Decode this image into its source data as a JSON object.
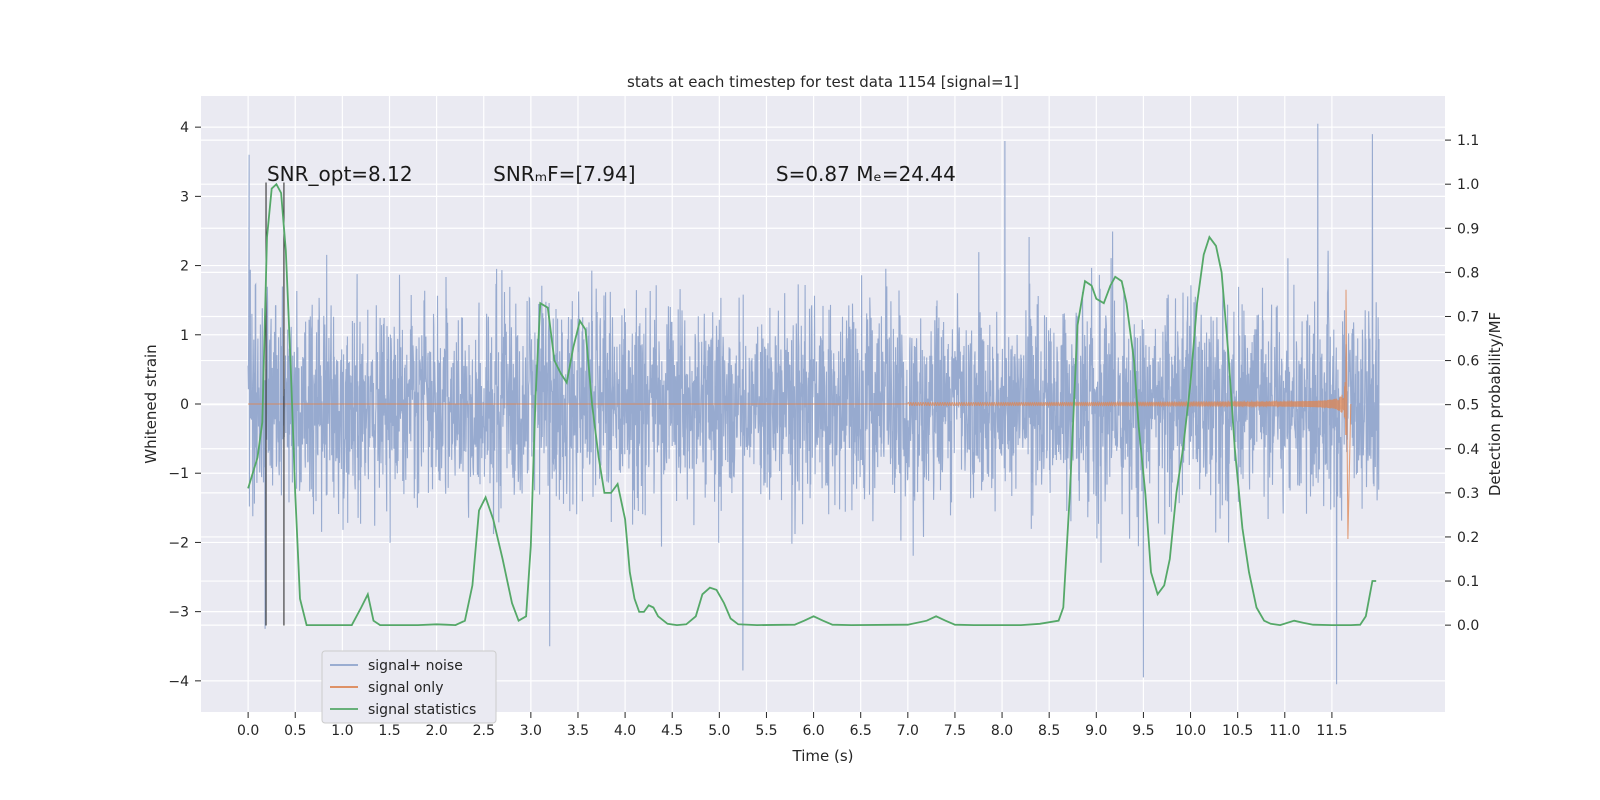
{
  "chart_data": {
    "type": "line",
    "title": "stats at each timestep for test data 1154 [signal=1]",
    "xlabel": "Time (s)",
    "ylabel": "Whitened strain",
    "y2label": "Detection probability/MF",
    "xlim": [
      -0.5,
      12.7
    ],
    "ylim": [
      -4.45,
      4.45
    ],
    "y2lim": [
      -0.197,
      1.2
    ],
    "xticks": [
      0.0,
      0.5,
      1.0,
      1.5,
      2.0,
      2.5,
      3.0,
      3.5,
      4.0,
      4.5,
      5.0,
      5.5,
      6.0,
      6.5,
      7.0,
      7.5,
      8.0,
      8.5,
      9.0,
      9.5,
      10.0,
      10.5,
      11.0,
      11.5
    ],
    "xtick_labels": [
      "0.0",
      "0.5",
      "1.0",
      "1.5",
      "2.0",
      "2.5",
      "3.0",
      "3.5",
      "4.0",
      "4.5",
      "5.0",
      "5.5",
      "6.0",
      "6.5",
      "7.0",
      "7.5",
      "8.0",
      "8.5",
      "9.0",
      "9.5",
      "10.0",
      "10.5",
      "11.0",
      "11.5"
    ],
    "yticks": [
      4,
      3,
      2,
      1,
      0,
      -1,
      -2,
      -3,
      -4
    ],
    "ytick_labels": [
      "4",
      "3",
      "2",
      "1",
      "0",
      "−1",
      "−2",
      "−3",
      "−4"
    ],
    "y2ticks": [
      1.1,
      1.0,
      0.9,
      0.8,
      0.7,
      0.6,
      0.5,
      0.4,
      0.3,
      0.2,
      0.1,
      0.0
    ],
    "y2tick_labels": [
      "1.1",
      "1.0",
      "0.9",
      "0.8",
      "0.7",
      "0.6",
      "0.5",
      "0.4",
      "0.3",
      "0.2",
      "0.1",
      "0.0"
    ],
    "grid": true,
    "legend_position": "lower-left",
    "annotations": [
      {
        "text": "SNR_opt=8.12",
        "x": 0.2,
        "y": 3.22
      },
      {
        "text": "SNRₘF=[7.94]",
        "x": 2.6,
        "y": 3.22
      },
      {
        "text": "S=0.87   Mₑ=24.44",
        "x": 5.6,
        "y": 3.22
      }
    ],
    "vertical_markers": [
      0.19,
      0.38
    ],
    "series": [
      {
        "name": "signal+ noise",
        "color": "#8fa4cc",
        "axis": "left",
        "t_range": [
          0.0,
          12.0
        ],
        "typical_abs": 1.3,
        "extreme_peaks": [
          [
            0.01,
            3.6
          ],
          [
            0.18,
            -3.25
          ],
          [
            8.03,
            3.8
          ],
          [
            11.35,
            4.05
          ],
          [
            11.55,
            -4.05
          ],
          [
            11.93,
            3.9
          ],
          [
            5.25,
            -3.85
          ],
          [
            9.5,
            -3.95
          ],
          [
            3.2,
            -3.5
          ]
        ]
      },
      {
        "name": "signal only",
        "color": "#dd8452",
        "axis": "left",
        "t_range": [
          7.0,
          11.7
        ],
        "chirp_peak_time": 11.65,
        "chirp_peak_amp": 1.65,
        "chirp_peak_min": -1.95
      },
      {
        "name": "signal statistics",
        "color": "#55a868",
        "axis": "right",
        "points": [
          [
            0.0,
            0.31
          ],
          [
            0.1,
            0.38
          ],
          [
            0.15,
            0.46
          ],
          [
            0.2,
            0.88
          ],
          [
            0.25,
            0.99
          ],
          [
            0.3,
            1.0
          ],
          [
            0.35,
            0.98
          ],
          [
            0.4,
            0.85
          ],
          [
            0.45,
            0.6
          ],
          [
            0.5,
            0.3
          ],
          [
            0.55,
            0.06
          ],
          [
            0.62,
            0.0
          ],
          [
            0.8,
            0.0
          ],
          [
            1.0,
            0.0
          ],
          [
            1.1,
            0.0
          ],
          [
            1.2,
            0.04
          ],
          [
            1.27,
            0.07
          ],
          [
            1.33,
            0.01
          ],
          [
            1.4,
            0.0
          ],
          [
            1.6,
            0.0
          ],
          [
            1.8,
            0.0
          ],
          [
            2.0,
            0.002
          ],
          [
            2.1,
            0.001
          ],
          [
            2.2,
            0.0
          ],
          [
            2.3,
            0.01
          ],
          [
            2.38,
            0.09
          ],
          [
            2.45,
            0.26
          ],
          [
            2.52,
            0.29
          ],
          [
            2.6,
            0.24
          ],
          [
            2.7,
            0.15
          ],
          [
            2.8,
            0.05
          ],
          [
            2.87,
            0.01
          ],
          [
            2.95,
            0.02
          ],
          [
            3.0,
            0.18
          ],
          [
            3.05,
            0.52
          ],
          [
            3.1,
            0.73
          ],
          [
            3.18,
            0.72
          ],
          [
            3.25,
            0.6
          ],
          [
            3.32,
            0.57
          ],
          [
            3.38,
            0.55
          ],
          [
            3.45,
            0.63
          ],
          [
            3.52,
            0.69
          ],
          [
            3.58,
            0.67
          ],
          [
            3.65,
            0.5
          ],
          [
            3.72,
            0.38
          ],
          [
            3.78,
            0.3
          ],
          [
            3.85,
            0.3
          ],
          [
            3.92,
            0.32
          ],
          [
            4.0,
            0.24
          ],
          [
            4.05,
            0.12
          ],
          [
            4.1,
            0.06
          ],
          [
            4.15,
            0.03
          ],
          [
            4.2,
            0.03
          ],
          [
            4.25,
            0.045
          ],
          [
            4.3,
            0.04
          ],
          [
            4.35,
            0.02
          ],
          [
            4.45,
            0.003
          ],
          [
            4.55,
            0.0
          ],
          [
            4.65,
            0.002
          ],
          [
            4.75,
            0.02
          ],
          [
            4.82,
            0.07
          ],
          [
            4.9,
            0.085
          ],
          [
            4.97,
            0.08
          ],
          [
            5.05,
            0.05
          ],
          [
            5.12,
            0.015
          ],
          [
            5.2,
            0.002
          ],
          [
            5.4,
            0.0
          ],
          [
            5.8,
            0.001
          ],
          [
            5.9,
            0.01
          ],
          [
            6.0,
            0.02
          ],
          [
            6.1,
            0.01
          ],
          [
            6.2,
            0.001
          ],
          [
            6.4,
            0.0
          ],
          [
            7.0,
            0.001
          ],
          [
            7.2,
            0.01
          ],
          [
            7.3,
            0.02
          ],
          [
            7.4,
            0.01
          ],
          [
            7.5,
            0.001
          ],
          [
            7.7,
            0.0
          ],
          [
            8.2,
            0.0
          ],
          [
            8.4,
            0.003
          ],
          [
            8.6,
            0.01
          ],
          [
            8.65,
            0.04
          ],
          [
            8.72,
            0.3
          ],
          [
            8.8,
            0.68
          ],
          [
            8.88,
            0.78
          ],
          [
            8.95,
            0.77
          ],
          [
            9.0,
            0.74
          ],
          [
            9.08,
            0.73
          ],
          [
            9.15,
            0.77
          ],
          [
            9.2,
            0.79
          ],
          [
            9.27,
            0.78
          ],
          [
            9.32,
            0.73
          ],
          [
            9.4,
            0.6
          ],
          [
            9.45,
            0.45
          ],
          [
            9.52,
            0.3
          ],
          [
            9.58,
            0.12
          ],
          [
            9.65,
            0.07
          ],
          [
            9.72,
            0.09
          ],
          [
            9.78,
            0.15
          ],
          [
            9.85,
            0.3
          ],
          [
            9.92,
            0.4
          ],
          [
            10.0,
            0.55
          ],
          [
            10.07,
            0.73
          ],
          [
            10.14,
            0.84
          ],
          [
            10.2,
            0.88
          ],
          [
            10.27,
            0.86
          ],
          [
            10.33,
            0.8
          ],
          [
            10.4,
            0.62
          ],
          [
            10.47,
            0.4
          ],
          [
            10.55,
            0.22
          ],
          [
            10.62,
            0.12
          ],
          [
            10.7,
            0.04
          ],
          [
            10.78,
            0.01
          ],
          [
            10.85,
            0.003
          ],
          [
            10.95,
            0.0
          ],
          [
            11.1,
            0.01
          ],
          [
            11.2,
            0.005
          ],
          [
            11.3,
            0.001
          ],
          [
            11.5,
            0.0
          ],
          [
            11.7,
            0.0
          ],
          [
            11.8,
            0.001
          ],
          [
            11.86,
            0.02
          ],
          [
            11.93,
            0.1
          ],
          [
            11.97,
            0.1
          ]
        ]
      }
    ]
  }
}
